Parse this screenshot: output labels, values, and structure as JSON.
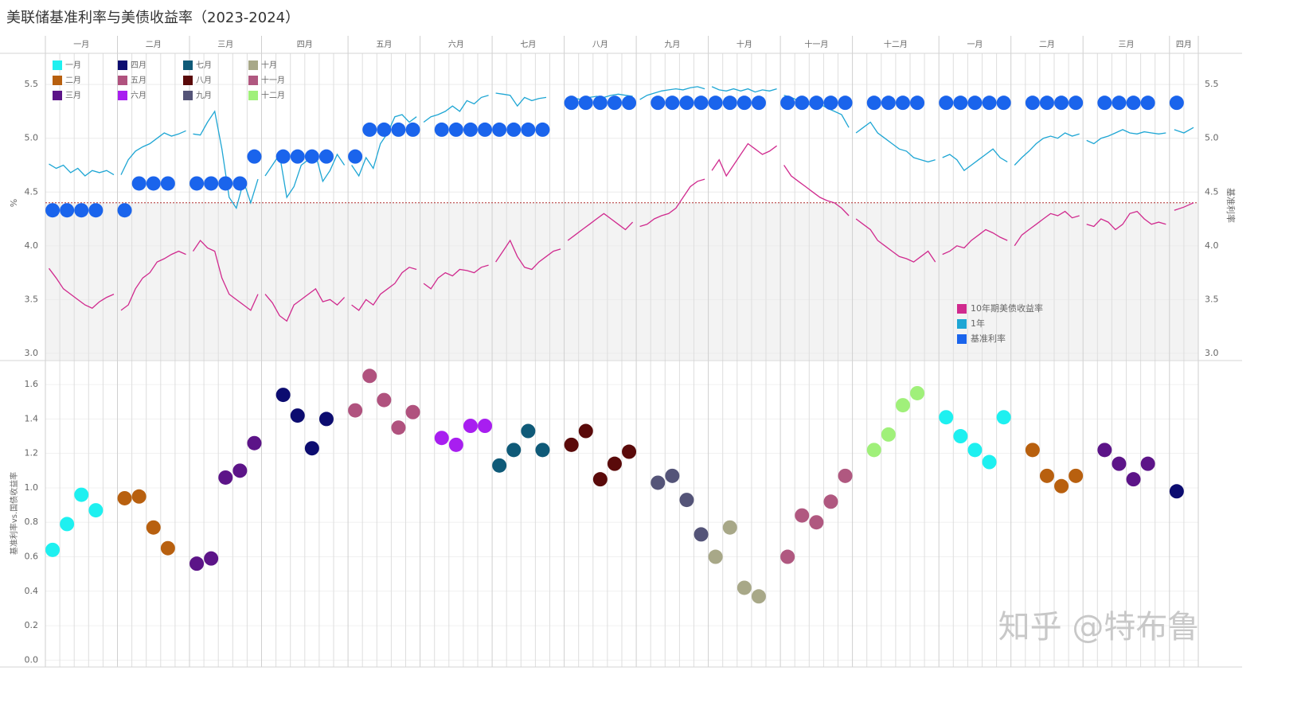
{
  "title": "美联储基准利率与美债收益率（2023-2024）",
  "watermark": "知乎 @特布鲁",
  "chart_data": [
    {
      "type": "line",
      "categories": [
        "一月",
        "二月",
        "三月",
        "四月",
        "五月",
        "六月",
        "七月",
        "八月",
        "九月",
        "十月",
        "十一月",
        "十二月",
        "一月",
        "二月",
        "三月",
        "四月"
      ],
      "ylabel": "%",
      "y2label": "基准利率",
      "ylim": [
        2.94,
        5.79
      ],
      "yticks": [
        {
          "value": 3.0,
          "label": "3.0"
        },
        3.5,
        {
          "value": 4.0,
          "label": "4.0"
        },
        4.5,
        {
          "value": 5.0,
          "label": "5.0"
        },
        5.5
      ],
      "reference_line": 4.4,
      "reference_color": "#b03030",
      "grid": true,
      "series": [
        {
          "name": "10年期美债收益率",
          "color": "#d02a8e",
          "mark": "line",
          "values": [
            [
              3.79,
              3.7,
              3.6,
              3.55,
              3.5,
              3.45,
              3.42,
              3.48,
              3.52,
              3.55
            ],
            [
              3.4,
              3.45,
              3.6,
              3.7,
              3.75,
              3.85,
              3.88,
              3.92,
              3.95,
              3.92
            ],
            [
              3.95,
              4.05,
              3.98,
              3.95,
              3.7,
              3.55,
              3.5,
              3.45,
              3.4,
              3.55
            ],
            [
              3.55,
              3.47,
              3.35,
              3.3,
              3.45,
              3.5,
              3.55,
              3.6,
              3.48,
              3.5,
              3.45,
              3.52
            ],
            [
              3.45,
              3.4,
              3.5,
              3.45,
              3.55,
              3.6,
              3.65,
              3.75,
              3.8,
              3.78
            ],
            [
              3.65,
              3.6,
              3.7,
              3.75,
              3.72,
              3.78,
              3.77,
              3.75,
              3.8,
              3.82
            ],
            [
              3.85,
              3.95,
              4.05,
              3.9,
              3.8,
              3.78,
              3.85,
              3.9,
              3.95,
              3.97
            ],
            [
              4.05,
              4.1,
              4.15,
              4.2,
              4.25,
              4.3,
              4.25,
              4.2,
              4.15,
              4.22
            ],
            [
              4.18,
              4.2,
              4.25,
              4.28,
              4.3,
              4.35,
              4.45,
              4.55,
              4.6,
              4.62
            ],
            [
              4.7,
              4.8,
              4.65,
              4.75,
              4.85,
              4.95,
              4.9,
              4.85,
              4.88,
              4.93
            ],
            [
              4.75,
              4.65,
              4.6,
              4.55,
              4.5,
              4.45,
              4.42,
              4.4,
              4.35,
              4.28
            ],
            [
              4.25,
              4.2,
              4.15,
              4.05,
              4.0,
              3.95,
              3.9,
              3.88,
              3.85,
              3.9,
              3.95,
              3.85
            ],
            [
              3.92,
              3.95,
              4.0,
              3.98,
              4.05,
              4.1,
              4.15,
              4.12,
              4.08,
              4.05
            ],
            [
              4.0,
              4.1,
              4.15,
              4.2,
              4.25,
              4.3,
              4.28,
              4.32,
              4.26,
              4.28
            ],
            [
              4.2,
              4.18,
              4.25,
              4.22,
              4.15,
              4.2,
              4.3,
              4.32,
              4.25,
              4.2,
              4.22,
              4.2
            ],
            [
              4.33,
              4.36,
              4.4
            ]
          ]
        },
        {
          "name": "1年",
          "color": "#1ea6d4",
          "mark": "line",
          "values": [
            [
              4.76,
              4.72,
              4.75,
              4.68,
              4.72,
              4.65,
              4.7,
              4.68,
              4.7,
              4.66
            ],
            [
              4.66,
              4.8,
              4.88,
              4.92,
              4.95,
              5.0,
              5.05,
              5.02,
              5.04,
              5.07
            ],
            [
              5.04,
              5.03,
              5.15,
              5.25,
              4.9,
              4.45,
              4.35,
              4.6,
              4.4,
              4.62
            ],
            [
              4.65,
              4.75,
              4.85,
              4.45,
              4.55,
              4.75,
              4.8,
              4.85,
              4.6,
              4.7,
              4.85,
              4.75
            ],
            [
              4.75,
              4.65,
              4.82,
              4.72,
              4.95,
              5.05,
              5.2,
              5.22,
              5.15,
              5.2
            ],
            [
              5.15,
              5.2,
              5.22,
              5.25,
              5.3,
              5.25,
              5.35,
              5.32,
              5.38,
              5.4
            ],
            [
              5.42,
              5.41,
              5.4,
              5.3,
              5.38,
              5.35,
              5.37,
              5.38,
              null,
              5.36
            ],
            [
              5.35,
              5.37,
              5.36,
              5.38,
              5.39,
              5.38,
              5.4,
              5.41,
              5.4,
              5.39
            ],
            [
              5.36,
              5.4,
              5.42,
              5.44,
              5.45,
              5.46,
              5.45,
              5.47,
              5.48,
              5.46
            ],
            [
              5.48,
              5.45,
              5.44,
              5.46,
              5.44,
              5.46,
              5.43,
              5.45,
              5.44,
              5.46
            ],
            [
              5.4,
              5.38,
              5.35,
              5.33,
              5.3,
              5.32,
              5.28,
              5.25,
              5.22,
              5.1
            ],
            [
              5.05,
              5.1,
              5.15,
              5.05,
              5.0,
              4.95,
              4.9,
              4.88,
              4.82,
              4.8,
              4.78,
              4.8
            ],
            [
              4.82,
              4.85,
              4.8,
              4.7,
              4.75,
              4.8,
              4.85,
              4.9,
              4.82,
              4.78
            ],
            [
              4.75,
              4.82,
              4.88,
              4.95,
              5.0,
              5.02,
              5.0,
              5.05,
              5.02,
              5.04
            ],
            [
              4.98,
              4.95,
              5.0,
              5.02,
              5.05,
              5.08,
              5.05,
              5.04,
              5.06,
              5.05,
              5.04,
              5.05
            ],
            [
              5.08,
              5.05,
              5.1
            ]
          ]
        },
        {
          "name": "基准利率",
          "color": "#1a64ec",
          "mark": "circle",
          "values": [
            [
              4.33,
              4.33,
              4.33,
              4.33,
              null
            ],
            [
              4.33,
              4.58,
              4.58,
              4.58,
              null
            ],
            [
              4.58,
              4.58,
              4.58,
              4.58,
              4.83
            ],
            [
              null,
              4.83,
              4.83,
              4.83,
              4.83,
              null
            ],
            [
              4.83,
              5.08,
              5.08,
              5.08,
              5.08
            ],
            [
              null,
              5.08,
              5.08,
              5.08,
              5.08
            ],
            [
              5.08,
              5.08,
              5.08,
              5.08,
              null
            ],
            [
              5.33,
              5.33,
              5.33,
              5.33,
              5.33
            ],
            [
              null,
              5.33,
              5.33,
              5.33,
              5.33
            ],
            [
              5.33,
              5.33,
              5.33,
              5.33,
              null
            ],
            [
              5.33,
              5.33,
              5.33,
              5.33,
              5.33
            ],
            [
              null,
              5.33,
              5.33,
              5.33,
              5.33,
              null
            ],
            [
              5.33,
              5.33,
              5.33,
              5.33,
              5.33
            ],
            [
              null,
              5.33,
              5.33,
              5.33,
              5.33
            ],
            [
              null,
              5.33,
              5.33,
              5.33,
              5.33,
              null
            ],
            [
              5.33,
              null
            ]
          ]
        }
      ]
    },
    {
      "type": "scatter",
      "ylabel": "基准利率vs.国债收益率",
      "ylim": [
        -0.04,
        1.73
      ],
      "yticks": [
        {
          "value": 0,
          "label": "0.0"
        },
        0.2,
        0.4,
        0.6,
        0.8,
        {
          "value": 1,
          "label": "1.0"
        },
        1.2,
        1.4,
        1.6
      ],
      "legend": [
        {
          "name": "一月",
          "color": "#1ef0f0"
        },
        {
          "name": "二月",
          "color": "#b8600f"
        },
        {
          "name": "三月",
          "color": "#5c1488"
        },
        {
          "name": "四月",
          "color": "#0c0c70"
        },
        {
          "name": "五月",
          "color": "#b0527e"
        },
        {
          "name": "六月",
          "color": "#a81ef0"
        },
        {
          "name": "七月",
          "color": "#0f5a78"
        },
        {
          "name": "八月",
          "color": "#5a0a0a"
        },
        {
          "name": "九月",
          "color": "#545478"
        },
        {
          "name": "十月",
          "color": "#a8a888"
        },
        {
          "name": "十一月",
          "color": "#b05880"
        },
        {
          "name": "十二月",
          "color": "#a0f07a"
        }
      ],
      "values": [
        [
          0.64,
          0.79,
          0.96,
          0.87,
          null
        ],
        [
          0.94,
          0.95,
          0.77,
          0.65,
          null
        ],
        [
          0.56,
          0.59,
          1.06,
          1.1,
          1.26
        ],
        [
          null,
          1.54,
          1.42,
          1.23,
          1.4,
          null
        ],
        [
          1.45,
          1.65,
          1.51,
          1.35,
          1.44
        ],
        [
          null,
          1.29,
          1.25,
          1.36,
          1.36
        ],
        [
          1.13,
          1.22,
          1.33,
          1.22,
          null
        ],
        [
          1.25,
          1.33,
          1.05,
          1.14,
          1.21
        ],
        [
          null,
          1.03,
          1.07,
          0.93,
          0.73
        ],
        [
          0.6,
          0.77,
          0.42,
          0.37,
          null
        ],
        [
          0.6,
          0.84,
          0.8,
          0.92,
          1.07
        ],
        [
          null,
          1.22,
          1.31,
          1.48,
          1.55,
          null
        ],
        [
          1.41,
          1.3,
          1.22,
          1.15,
          1.41
        ],
        [
          null,
          1.22,
          1.07,
          1.01,
          1.07
        ],
        [
          null,
          1.22,
          1.14,
          1.05,
          1.14,
          null
        ],
        [
          0.98,
          null
        ]
      ]
    }
  ]
}
